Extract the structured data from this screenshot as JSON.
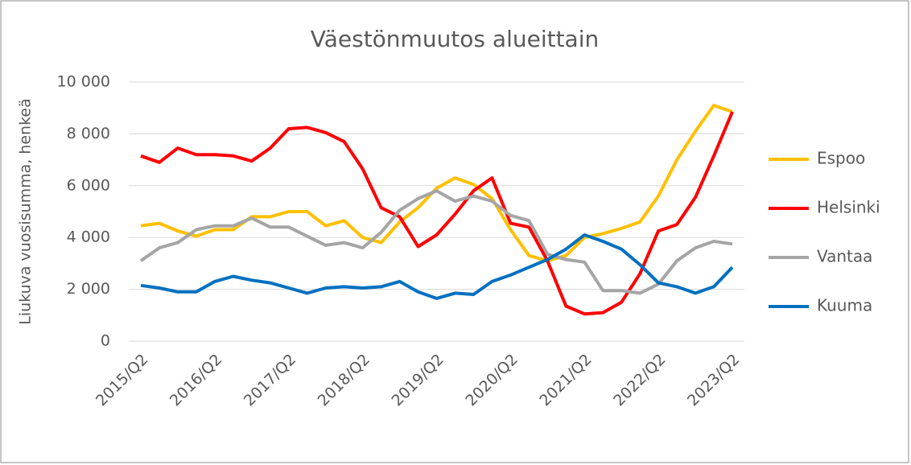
{
  "chart_data": {
    "type": "line",
    "title": "Väestönmuutos alueittain",
    "y_label": "Liukuva vuosisumma,  henkeä",
    "categories": [
      "2015/Q2",
      null,
      null,
      null,
      "2016/Q2",
      null,
      null,
      null,
      "2017/Q2",
      null,
      null,
      null,
      "2018/Q2",
      null,
      null,
      null,
      "2019/Q2",
      null,
      null,
      null,
      "2020/Q2",
      null,
      null,
      null,
      "2021/Q2",
      null,
      null,
      null,
      "2022/Q2",
      null,
      null,
      null,
      "2023/Q2"
    ],
    "series": [
      {
        "name": "Espoo",
        "color": "#ffc000",
        "values": [
          4450,
          4550,
          4250,
          4050,
          4300,
          4300,
          4800,
          4800,
          5000,
          5000,
          4450,
          4650,
          4000,
          3800,
          4600,
          5150,
          5900,
          6300,
          6050,
          5500,
          4300,
          3300,
          3100,
          3300,
          4000,
          4150,
          4350,
          4600,
          5600,
          7000,
          8100,
          9100,
          8850
        ]
      },
      {
        "name": "Helsinki",
        "color": "#ff0000",
        "values": [
          7150,
          6900,
          7450,
          7200,
          7200,
          7150,
          6950,
          7450,
          8200,
          8250,
          8050,
          7700,
          6650,
          5150,
          4800,
          3650,
          4100,
          4900,
          5800,
          6300,
          4550,
          4400,
          3100,
          1350,
          1050,
          1100,
          1500,
          2600,
          4250,
          4500,
          5550,
          7150,
          8850
        ]
      },
      {
        "name": "Vantaa",
        "color": "#a5a5a5",
        "values": [
          3100,
          3600,
          3800,
          4300,
          4450,
          4450,
          4750,
          4400,
          4400,
          4050,
          3700,
          3800,
          3600,
          4200,
          5050,
          5500,
          5800,
          5400,
          5600,
          5400,
          4850,
          4650,
          3350,
          3150,
          3050,
          1950,
          1950,
          1850,
          2200,
          3100,
          3600,
          3850,
          3750
        ]
      },
      {
        "name": "Kuuma",
        "color": "#0070c0",
        "values": [
          2150,
          2050,
          1900,
          1900,
          2300,
          2500,
          2350,
          2250,
          2050,
          1850,
          2050,
          2100,
          2050,
          2100,
          2300,
          1900,
          1650,
          1850,
          1800,
          2300,
          2550,
          2850,
          3150,
          3550,
          4100,
          3850,
          3550,
          2950,
          2250,
          2100,
          1850,
          2100,
          2850
        ]
      }
    ],
    "ylim": [
      0,
      10000
    ],
    "yticks": [
      0,
      {
        "value": 2000,
        "label": "2 000"
      },
      {
        "value": 4000,
        "label": "4 000"
      },
      {
        "value": 6000,
        "label": "6 000"
      },
      {
        "value": 8000,
        "label": "8 000"
      },
      {
        "value": 10000,
        "label": "10 000"
      }
    ],
    "grid": true,
    "legend": "right"
  }
}
